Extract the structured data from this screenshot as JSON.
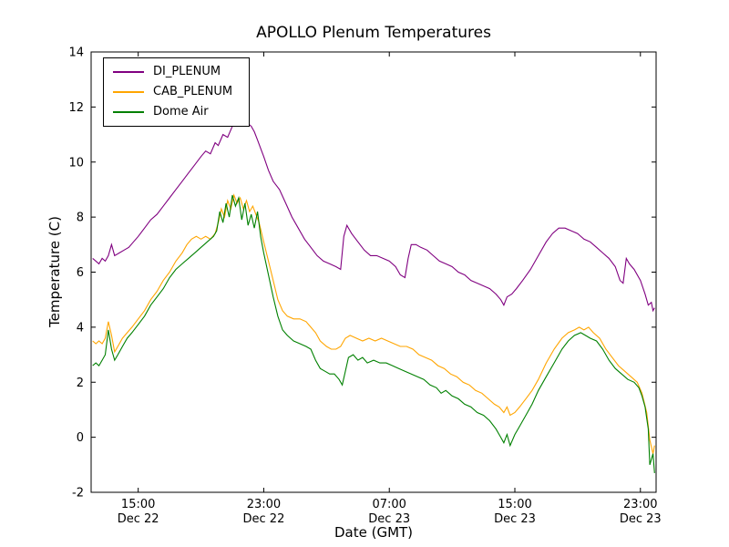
{
  "chart_data": {
    "type": "line",
    "title": "APOLLO Plenum Temperatures",
    "xlabel": "Date (GMT)",
    "ylabel": "Temperature (C)",
    "x_unit": "hours since Dec 22 00:00 GMT",
    "xlim": [
      12,
      48
    ],
    "ylim": [
      -2,
      14
    ],
    "yticks": [
      -2,
      0,
      2,
      4,
      6,
      8,
      10,
      12,
      14
    ],
    "xticks": [
      {
        "pos": 15,
        "time": "15:00",
        "date": "Dec 22"
      },
      {
        "pos": 23,
        "time": "23:00",
        "date": "Dec 22"
      },
      {
        "pos": 31,
        "time": "07:00",
        "date": "Dec 23"
      },
      {
        "pos": 39,
        "time": "15:00",
        "date": "Dec 23"
      },
      {
        "pos": 47,
        "time": "23:00",
        "date": "Dec 23"
      }
    ],
    "grid": false,
    "legend_position": "upper left",
    "axis_color": "#000000",
    "background": "#ffffff",
    "series": [
      {
        "name": "DI_PLENUM",
        "color": "#800080",
        "x": [
          12.1,
          12.3,
          12.5,
          12.7,
          12.9,
          13.1,
          13.3,
          13.5,
          13.8,
          14.1,
          14.4,
          14.7,
          15.0,
          15.4,
          15.8,
          16.2,
          16.6,
          17.0,
          17.4,
          17.8,
          18.2,
          18.6,
          19.0,
          19.3,
          19.6,
          19.9,
          20.1,
          20.4,
          20.7,
          21.0,
          21.2,
          21.4,
          21.6,
          21.8,
          22.0,
          22.2,
          22.4,
          22.6,
          22.8,
          23.0,
          23.3,
          23.6,
          24.0,
          24.4,
          24.8,
          25.2,
          25.6,
          26.0,
          26.4,
          26.8,
          27.2,
          27.6,
          27.9,
          28.1,
          28.3,
          28.6,
          29.0,
          29.4,
          29.8,
          30.2,
          30.6,
          31.0,
          31.4,
          31.7,
          32.0,
          32.2,
          32.4,
          32.7,
          33.0,
          33.4,
          33.8,
          34.2,
          34.6,
          35.0,
          35.4,
          35.8,
          36.2,
          36.6,
          37.0,
          37.4,
          37.8,
          38.1,
          38.3,
          38.5,
          38.8,
          39.1,
          39.5,
          40.0,
          40.5,
          41.0,
          41.4,
          41.8,
          42.2,
          42.6,
          43.0,
          43.4,
          43.8,
          44.2,
          44.6,
          45.0,
          45.4,
          45.7,
          45.9,
          46.1,
          46.3,
          46.6,
          47.0,
          47.3,
          47.5,
          47.7,
          47.8,
          47.9
        ],
        "values": [
          6.5,
          6.4,
          6.3,
          6.5,
          6.4,
          6.6,
          7.0,
          6.6,
          6.7,
          6.8,
          6.9,
          7.1,
          7.3,
          7.6,
          7.9,
          8.1,
          8.4,
          8.7,
          9.0,
          9.3,
          9.6,
          9.9,
          10.2,
          10.4,
          10.3,
          10.7,
          10.6,
          11.0,
          10.9,
          11.3,
          11.8,
          11.4,
          11.6,
          12.0,
          11.4,
          11.3,
          11.1,
          10.8,
          10.5,
          10.2,
          9.7,
          9.3,
          9.0,
          8.5,
          8.0,
          7.6,
          7.2,
          6.9,
          6.6,
          6.4,
          6.3,
          6.2,
          6.1,
          7.3,
          7.7,
          7.4,
          7.1,
          6.8,
          6.6,
          6.6,
          6.5,
          6.4,
          6.2,
          5.9,
          5.8,
          6.5,
          7.0,
          7.0,
          6.9,
          6.8,
          6.6,
          6.4,
          6.3,
          6.2,
          6.0,
          5.9,
          5.7,
          5.6,
          5.5,
          5.4,
          5.2,
          5.0,
          4.8,
          5.1,
          5.2,
          5.4,
          5.7,
          6.1,
          6.6,
          7.1,
          7.4,
          7.6,
          7.6,
          7.5,
          7.4,
          7.2,
          7.1,
          6.9,
          6.7,
          6.5,
          6.2,
          5.7,
          5.6,
          6.5,
          6.3,
          6.1,
          5.7,
          5.2,
          4.8,
          4.9,
          4.6,
          4.7
        ]
      },
      {
        "name": "CAB_PLENUM",
        "color": "#FFA500",
        "x": [
          12.1,
          12.3,
          12.5,
          12.7,
          12.9,
          13.1,
          13.3,
          13.5,
          13.7,
          14.0,
          14.3,
          14.6,
          15.0,
          15.4,
          15.8,
          16.2,
          16.6,
          17.0,
          17.4,
          17.8,
          18.1,
          18.4,
          18.7,
          19.0,
          19.3,
          19.6,
          19.9,
          20.1,
          20.3,
          20.5,
          20.7,
          20.9,
          21.1,
          21.3,
          21.5,
          21.7,
          21.9,
          22.1,
          22.3,
          22.5,
          22.7,
          23.0,
          23.3,
          23.6,
          23.9,
          24.2,
          24.5,
          24.9,
          25.3,
          25.7,
          26.0,
          26.3,
          26.6,
          27.0,
          27.3,
          27.6,
          27.9,
          28.2,
          28.5,
          28.9,
          29.3,
          29.7,
          30.1,
          30.5,
          30.9,
          31.3,
          31.7,
          32.1,
          32.5,
          32.9,
          33.3,
          33.7,
          34.1,
          34.5,
          34.9,
          35.3,
          35.7,
          36.1,
          36.5,
          36.9,
          37.3,
          37.7,
          38.0,
          38.3,
          38.5,
          38.7,
          39.0,
          39.3,
          39.7,
          40.1,
          40.5,
          41.0,
          41.5,
          42.0,
          42.4,
          42.8,
          43.1,
          43.4,
          43.7,
          44.0,
          44.4,
          44.8,
          45.2,
          45.6,
          46.0,
          46.4,
          46.8,
          47.1,
          47.4,
          47.6,
          47.8,
          47.9
        ],
        "values": [
          3.5,
          3.4,
          3.5,
          3.4,
          3.6,
          4.2,
          3.7,
          3.1,
          3.3,
          3.6,
          3.8,
          4.0,
          4.3,
          4.6,
          5.0,
          5.3,
          5.7,
          6.0,
          6.4,
          6.7,
          7.0,
          7.2,
          7.3,
          7.2,
          7.3,
          7.2,
          7.4,
          7.8,
          8.3,
          8.0,
          8.6,
          8.3,
          8.8,
          8.5,
          8.7,
          8.3,
          8.6,
          8.2,
          8.4,
          8.1,
          7.8,
          7.1,
          6.4,
          5.7,
          5.0,
          4.6,
          4.4,
          4.3,
          4.3,
          4.2,
          4.0,
          3.8,
          3.5,
          3.3,
          3.2,
          3.2,
          3.3,
          3.6,
          3.7,
          3.6,
          3.5,
          3.6,
          3.5,
          3.6,
          3.5,
          3.4,
          3.3,
          3.3,
          3.2,
          3.0,
          2.9,
          2.8,
          2.6,
          2.5,
          2.3,
          2.2,
          2.0,
          1.9,
          1.7,
          1.6,
          1.4,
          1.2,
          1.1,
          0.9,
          1.1,
          0.8,
          0.9,
          1.1,
          1.4,
          1.7,
          2.1,
          2.7,
          3.2,
          3.6,
          3.8,
          3.9,
          4.0,
          3.9,
          4.0,
          3.8,
          3.6,
          3.2,
          2.9,
          2.6,
          2.4,
          2.2,
          2.0,
          1.6,
          0.9,
          -0.1,
          -0.6,
          -0.3
        ]
      },
      {
        "name": "Dome Air",
        "color": "#008000",
        "x": [
          12.1,
          12.3,
          12.5,
          12.7,
          12.9,
          13.1,
          13.3,
          13.5,
          13.7,
          14.0,
          14.3,
          14.6,
          15.0,
          15.4,
          15.8,
          16.2,
          16.6,
          17.0,
          17.4,
          17.8,
          18.2,
          18.6,
          19.0,
          19.4,
          19.8,
          20.0,
          20.2,
          20.4,
          20.6,
          20.8,
          21.0,
          21.2,
          21.4,
          21.6,
          21.8,
          22.0,
          22.2,
          22.4,
          22.6,
          22.8,
          23.0,
          23.3,
          23.6,
          23.9,
          24.2,
          24.5,
          24.9,
          25.3,
          25.7,
          26.0,
          26.3,
          26.6,
          26.9,
          27.2,
          27.5,
          27.8,
          28.0,
          28.2,
          28.4,
          28.7,
          29.0,
          29.3,
          29.6,
          30.0,
          30.4,
          30.8,
          31.2,
          31.6,
          32.0,
          32.4,
          32.8,
          33.2,
          33.6,
          34.0,
          34.3,
          34.6,
          35.0,
          35.4,
          35.8,
          36.2,
          36.6,
          37.0,
          37.4,
          37.8,
          38.1,
          38.3,
          38.5,
          38.7,
          39.0,
          39.3,
          39.7,
          40.1,
          40.5,
          41.0,
          41.5,
          42.0,
          42.4,
          42.8,
          43.2,
          43.5,
          43.8,
          44.2,
          44.6,
          45.0,
          45.4,
          45.8,
          46.2,
          46.6,
          46.9,
          47.1,
          47.3,
          47.5,
          47.6,
          47.8,
          47.9
        ],
        "values": [
          2.6,
          2.7,
          2.6,
          2.8,
          3.0,
          3.9,
          3.2,
          2.8,
          3.0,
          3.3,
          3.6,
          3.8,
          4.1,
          4.4,
          4.8,
          5.1,
          5.4,
          5.8,
          6.1,
          6.3,
          6.5,
          6.7,
          6.9,
          7.1,
          7.3,
          7.5,
          8.2,
          7.8,
          8.5,
          8.0,
          8.8,
          8.4,
          8.7,
          7.9,
          8.5,
          7.7,
          8.1,
          7.6,
          8.2,
          7.3,
          6.7,
          5.9,
          5.1,
          4.4,
          3.9,
          3.7,
          3.5,
          3.4,
          3.3,
          3.2,
          2.8,
          2.5,
          2.4,
          2.3,
          2.3,
          2.1,
          1.9,
          2.4,
          2.9,
          3.0,
          2.8,
          2.9,
          2.7,
          2.8,
          2.7,
          2.7,
          2.6,
          2.5,
          2.4,
          2.3,
          2.2,
          2.1,
          1.9,
          1.8,
          1.6,
          1.7,
          1.5,
          1.4,
          1.2,
          1.1,
          0.9,
          0.8,
          0.6,
          0.3,
          0.0,
          -0.2,
          0.1,
          -0.3,
          0.1,
          0.4,
          0.8,
          1.2,
          1.7,
          2.2,
          2.7,
          3.2,
          3.5,
          3.7,
          3.8,
          3.7,
          3.6,
          3.5,
          3.2,
          2.8,
          2.5,
          2.3,
          2.1,
          2.0,
          1.8,
          1.5,
          1.1,
          0.3,
          -1.0,
          -0.6,
          -1.3
        ]
      }
    ]
  }
}
